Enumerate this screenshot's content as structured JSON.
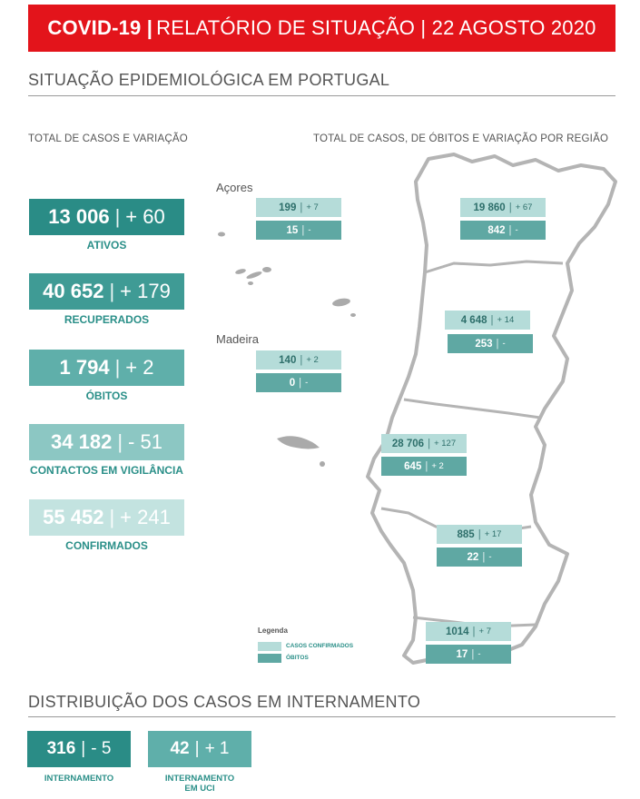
{
  "header": {
    "brand": "COVID-19 |",
    "subtitle": "RELATÓRIO DE SITUAÇÃO | 22 AGOSTO 2020"
  },
  "section1": {
    "title": "SITUAÇÃO EPIDEMIOLÓGICA EM PORTUGAL",
    "left_subhead": "TOTAL DE CASOS E VARIAÇÃO",
    "right_subhead": "TOTAL DE CASOS, DE ÓBITOS  E VARIAÇÃO POR REGIÃO"
  },
  "stats": [
    {
      "value": "13 006",
      "sep": "|",
      "change": "+ 60",
      "label": "ATIVOS",
      "color": "#2a8c86"
    },
    {
      "value": "40 652",
      "sep": "|",
      "change": "+ 179",
      "label": "RECUPERADOS",
      "color": "#3f9b95"
    },
    {
      "value": "1 794",
      "sep": "|",
      "change": "+ 2",
      "label": "ÓBITOS",
      "color": "#5fafaa"
    },
    {
      "value": "34 182",
      "sep": "|",
      "change": "- 51",
      "label": "CONTACTOS EM VIGILÂNCIA",
      "color": "#8cc7c3"
    },
    {
      "value": "55 452",
      "sep": "|",
      "change": "+ 241",
      "label": "CONFIRMADOS",
      "color": "#c3e3e0"
    }
  ],
  "islands": {
    "acores": "Açores",
    "madeira": "Madeira"
  },
  "regions": {
    "acores": {
      "cases": "199",
      "cases_var": "+ 7",
      "deaths": "15",
      "deaths_var": "-"
    },
    "madeira": {
      "cases": "140",
      "cases_var": "+ 2",
      "deaths": "0",
      "deaths_var": "-"
    },
    "norte": {
      "cases": "19 860",
      "cases_var": "+ 67",
      "deaths": "842",
      "deaths_var": "-"
    },
    "centro": {
      "cases": "4 648",
      "cases_var": "+ 14",
      "deaths": "253",
      "deaths_var": "-"
    },
    "lvt": {
      "cases": "28 706",
      "cases_var": "+ 127",
      "deaths": "645",
      "deaths_var": "+ 2"
    },
    "alentejo": {
      "cases": "885",
      "cases_var": "+ 17",
      "deaths": "22",
      "deaths_var": "-"
    },
    "algarve": {
      "cases": "1014",
      "cases_var": "+ 7",
      "deaths": "17",
      "deaths_var": "-"
    }
  },
  "legend": {
    "title": "Legenda",
    "cases_label": "CASOS CONFIRMADOS",
    "deaths_label": "ÓBITOS",
    "cases_color": "#b5dcd9",
    "deaths_color": "#5fa8a3"
  },
  "section2": {
    "title": "DISTRIBUIÇÃO DOS CASOS EM INTERNAMENTO"
  },
  "hospital": [
    {
      "value": "316",
      "sep": "|",
      "change": "- 5",
      "label_line1": "INTERNAMENTO",
      "label_line2": "",
      "color": "#2a8c86"
    },
    {
      "value": "42",
      "sep": "|",
      "change": "+ 1",
      "label_line1": "INTERNAMENTO",
      "label_line2": "EM UCI",
      "color": "#5fafaa"
    }
  ]
}
